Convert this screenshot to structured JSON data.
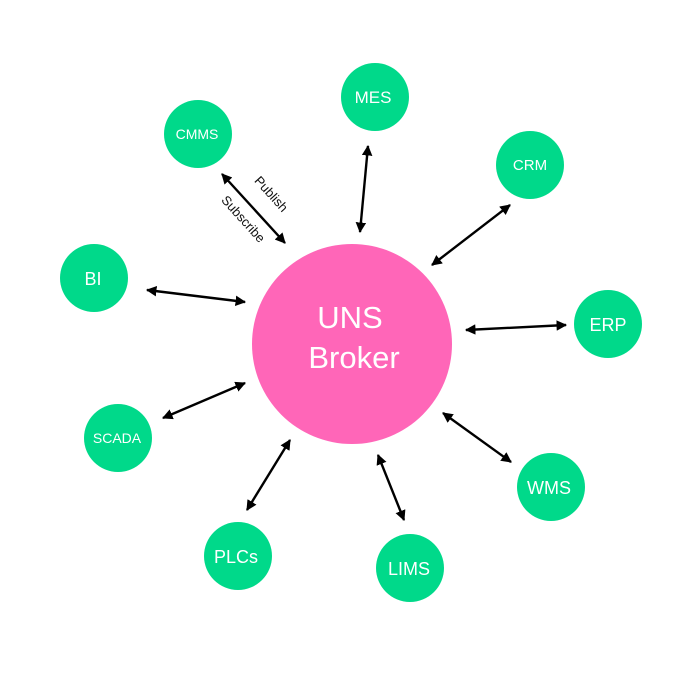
{
  "colors": {
    "hub": "#ff66b8",
    "node": "#00d98a",
    "arrow": "#000000",
    "background": "#ffffff"
  },
  "hub": {
    "line1": "UNS",
    "line2": "Broker"
  },
  "nodes": {
    "mes": "MES",
    "crm": "CRM",
    "erp": "ERP",
    "wms": "WMS",
    "lims": "LIMS",
    "plcs": "PLCs",
    "scada": "SCADA",
    "bi": "BI",
    "cmms": "CMMS"
  },
  "edge_labels": {
    "publish": "Publish",
    "subscribe": "Subscribe"
  }
}
